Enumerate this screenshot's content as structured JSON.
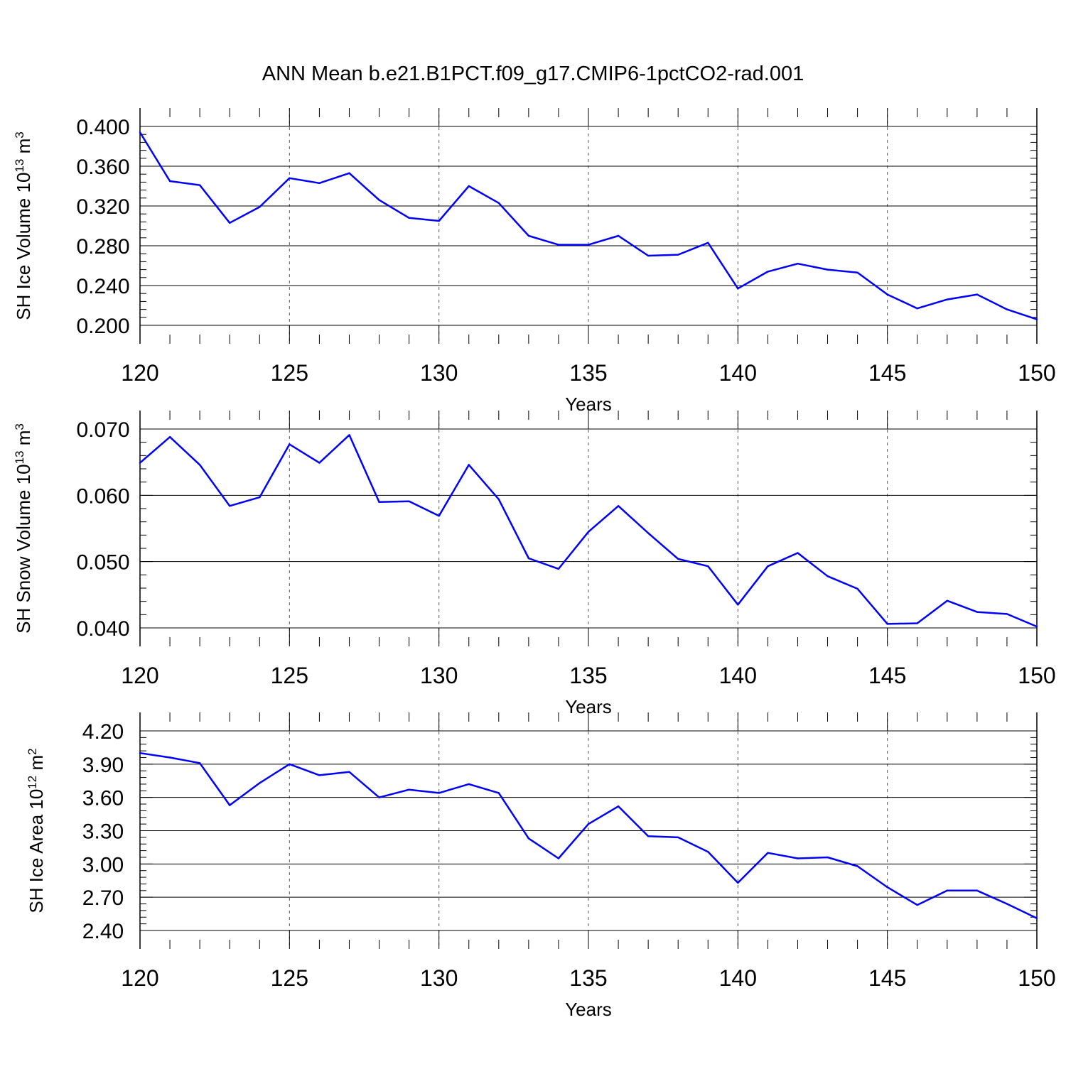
{
  "title": "ANN Mean b.e21.B1PCT.f09_g17.CMIP6-1pctCO2-rad.001",
  "colors": {
    "line": "#0000ff",
    "axis": "#000000",
    "grid": "#555555"
  },
  "chart_data": [
    {
      "type": "line",
      "xlabel": "Years",
      "ylabel": {
        "prefix": "SH Ice Volume 10",
        "exp": "13",
        "unit": " m",
        "unit_exp": "3"
      },
      "xlim": [
        120,
        150
      ],
      "ylim": [
        0.2,
        0.4
      ],
      "xticks": [
        "120",
        "125",
        "130",
        "135",
        "140",
        "145",
        "150"
      ],
      "yticks": [
        "0.200",
        "0.240",
        "0.280",
        "0.320",
        "0.360",
        "0.400"
      ],
      "grid": "vertical-dashed",
      "series": [
        {
          "x": [
            120,
            121,
            122,
            123,
            124,
            125,
            126,
            127,
            128,
            129,
            130,
            131,
            132,
            133,
            134,
            135,
            136,
            137,
            138,
            139,
            140,
            141,
            142,
            143,
            144,
            145,
            146,
            147,
            148,
            149,
            150
          ],
          "values": [
            0.394,
            0.345,
            0.341,
            0.303,
            0.319,
            0.348,
            0.343,
            0.353,
            0.326,
            0.308,
            0.305,
            0.34,
            0.323,
            0.29,
            0.281,
            0.281,
            0.29,
            0.27,
            0.271,
            0.283,
            0.237,
            0.254,
            0.262,
            0.256,
            0.253,
            0.231,
            0.217,
            0.226,
            0.231,
            0.216,
            0.206
          ]
        }
      ]
    },
    {
      "type": "line",
      "xlabel": "Years",
      "ylabel": {
        "prefix": "SH Snow Volume 10",
        "exp": "13",
        "unit": " m",
        "unit_exp": "3"
      },
      "xlim": [
        120,
        150
      ],
      "ylim": [
        0.04,
        0.07
      ],
      "xticks": [
        "120",
        "125",
        "130",
        "135",
        "140",
        "145",
        "150"
      ],
      "yticks": [
        "0.040",
        "0.050",
        "0.060",
        "0.070"
      ],
      "grid": "vertical-dashed",
      "series": [
        {
          "x": [
            120,
            121,
            122,
            123,
            124,
            125,
            126,
            127,
            128,
            129,
            130,
            131,
            132,
            133,
            134,
            135,
            136,
            137,
            138,
            139,
            140,
            141,
            142,
            143,
            144,
            145,
            146,
            147,
            148,
            149,
            150
          ],
          "values": [
            0.0649,
            0.0688,
            0.0646,
            0.0584,
            0.0597,
            0.0677,
            0.0649,
            0.0691,
            0.059,
            0.0591,
            0.0569,
            0.0646,
            0.0594,
            0.0505,
            0.0489,
            0.0545,
            0.0584,
            0.0543,
            0.0504,
            0.0493,
            0.0435,
            0.0493,
            0.0513,
            0.0478,
            0.0459,
            0.0406,
            0.0407,
            0.0441,
            0.0424,
            0.0421,
            0.0402
          ]
        }
      ]
    },
    {
      "type": "line",
      "xlabel": "Years",
      "ylabel": {
        "prefix": "SH Ice Area 10",
        "exp": "12",
        "unit": " m",
        "unit_exp": "2"
      },
      "xlim": [
        120,
        150
      ],
      "ylim": [
        2.4,
        4.2
      ],
      "xticks": [
        "120",
        "125",
        "130",
        "135",
        "140",
        "145",
        "150"
      ],
      "yticks": [
        "2.40",
        "2.70",
        "3.00",
        "3.30",
        "3.60",
        "3.90",
        "4.20"
      ],
      "grid": "vertical-dashed",
      "series": [
        {
          "x": [
            120,
            121,
            122,
            123,
            124,
            125,
            126,
            127,
            128,
            129,
            130,
            131,
            132,
            133,
            134,
            135,
            136,
            137,
            138,
            139,
            140,
            141,
            142,
            143,
            144,
            145,
            146,
            147,
            148,
            149,
            150
          ],
          "values": [
            4.0,
            3.96,
            3.91,
            3.53,
            3.73,
            3.9,
            3.8,
            3.83,
            3.6,
            3.67,
            3.64,
            3.72,
            3.64,
            3.23,
            3.05,
            3.36,
            3.52,
            3.25,
            3.24,
            3.11,
            2.83,
            3.1,
            3.05,
            3.06,
            2.98,
            2.79,
            2.63,
            2.76,
            2.76,
            2.64,
            2.51
          ]
        }
      ]
    }
  ]
}
